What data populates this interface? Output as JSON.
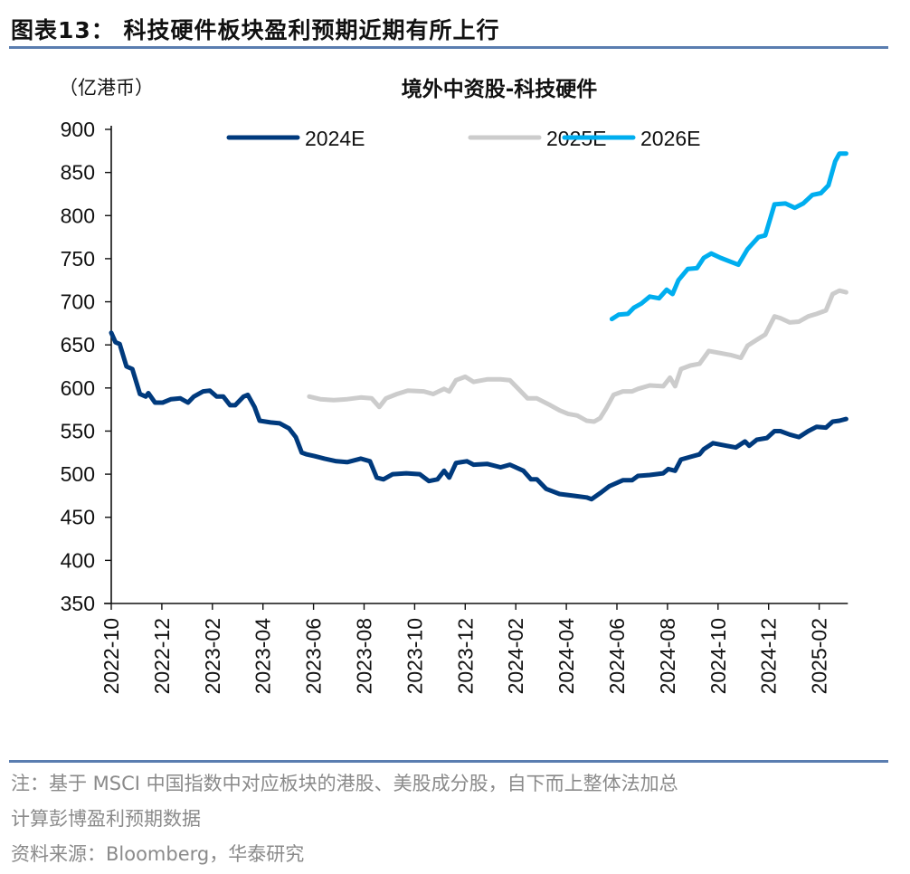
{
  "figure_title": "图表13： 科技硬件板块盈利预期近期有所上行",
  "notes": [
    "注：基于 MSCI 中国指数中对应板块的港股、美股成分股，自下而上整体法加总",
    "计算彭博盈利预期数据",
    "资料来源：Bloomberg，华泰研究"
  ],
  "chart_data": {
    "type": "line",
    "title": "境外中资股-科技硬件",
    "unit_label": "（亿港币）",
    "ylim": [
      350,
      900
    ],
    "yticks": [
      350,
      400,
      450,
      500,
      550,
      600,
      650,
      700,
      750,
      800,
      850,
      900
    ],
    "xlim": [
      "2022-10-01",
      "2025-03-05"
    ],
    "xticks": [
      "2022-10",
      "2022-12",
      "2023-02",
      "2023-04",
      "2023-06",
      "2023-08",
      "2023-10",
      "2023-12",
      "2024-02",
      "2024-04",
      "2024-06",
      "2024-08",
      "2024-10",
      "2024-12",
      "2025-02"
    ],
    "grid": false,
    "legend_position": "top",
    "series": [
      {
        "name": "2024E",
        "color": "#003a7d",
        "points": [
          [
            "2022-10-01",
            664
          ],
          [
            "2022-10-06",
            653
          ],
          [
            "2022-10-11",
            651
          ],
          [
            "2022-10-19",
            625
          ],
          [
            "2022-10-26",
            622
          ],
          [
            "2022-11-05",
            593
          ],
          [
            "2022-11-12",
            590
          ],
          [
            "2022-11-15",
            594
          ],
          [
            "2022-11-23",
            583
          ],
          [
            "2022-12-02",
            583
          ],
          [
            "2022-12-12",
            587
          ],
          [
            "2022-12-23",
            588
          ],
          [
            "2023-01-02",
            583
          ],
          [
            "2023-01-09",
            590
          ],
          [
            "2023-01-20",
            596
          ],
          [
            "2023-01-28",
            597
          ],
          [
            "2023-02-06",
            590
          ],
          [
            "2023-02-14",
            590
          ],
          [
            "2023-02-22",
            580
          ],
          [
            "2023-02-28",
            580
          ],
          [
            "2023-03-08",
            590
          ],
          [
            "2023-03-13",
            592
          ],
          [
            "2023-03-21",
            578
          ],
          [
            "2023-03-27",
            562
          ],
          [
            "2023-04-10",
            560
          ],
          [
            "2023-04-21",
            559
          ],
          [
            "2023-05-02",
            553
          ],
          [
            "2023-05-10",
            543
          ],
          [
            "2023-05-17",
            525
          ],
          [
            "2023-05-23",
            523
          ],
          [
            "2023-06-02",
            521
          ],
          [
            "2023-06-14",
            518
          ],
          [
            "2023-06-28",
            515
          ],
          [
            "2023-07-11",
            514
          ],
          [
            "2023-07-27",
            518
          ],
          [
            "2023-08-08",
            515
          ],
          [
            "2023-08-16",
            496
          ],
          [
            "2023-08-24",
            494
          ],
          [
            "2023-09-05",
            500
          ],
          [
            "2023-09-21",
            501
          ],
          [
            "2023-10-07",
            500
          ],
          [
            "2023-10-18",
            492
          ],
          [
            "2023-10-28",
            494
          ],
          [
            "2023-11-06",
            504
          ],
          [
            "2023-11-12",
            496
          ],
          [
            "2023-11-20",
            513
          ],
          [
            "2023-12-03",
            515
          ],
          [
            "2023-12-11",
            511
          ],
          [
            "2023-12-27",
            512
          ],
          [
            "2024-01-13",
            508
          ],
          [
            "2024-01-24",
            511
          ],
          [
            "2024-02-10",
            504
          ],
          [
            "2024-02-19",
            494
          ],
          [
            "2024-02-26",
            494
          ],
          [
            "2024-03-07",
            483
          ],
          [
            "2024-03-23",
            477
          ],
          [
            "2024-04-09",
            475
          ],
          [
            "2024-04-25",
            473
          ],
          [
            "2024-05-01",
            471
          ],
          [
            "2024-05-11",
            478
          ],
          [
            "2024-05-22",
            486
          ],
          [
            "2024-06-08",
            493
          ],
          [
            "2024-06-19",
            493
          ],
          [
            "2024-06-26",
            498
          ],
          [
            "2024-07-10",
            499
          ],
          [
            "2024-07-26",
            501
          ],
          [
            "2024-08-02",
            506
          ],
          [
            "2024-08-10",
            504
          ],
          [
            "2024-08-17",
            517
          ],
          [
            "2024-08-28",
            520
          ],
          [
            "2024-09-09",
            523
          ],
          [
            "2024-09-14",
            529
          ],
          [
            "2024-09-25",
            536
          ],
          [
            "2024-10-11",
            533
          ],
          [
            "2024-10-22",
            531
          ],
          [
            "2024-11-03",
            538
          ],
          [
            "2024-11-08",
            533
          ],
          [
            "2024-11-17",
            540
          ],
          [
            "2024-11-29",
            542
          ],
          [
            "2024-12-08",
            550
          ],
          [
            "2024-12-15",
            550
          ],
          [
            "2024-12-26",
            546
          ],
          [
            "2025-01-07",
            543
          ],
          [
            "2025-01-18",
            550
          ],
          [
            "2025-01-28",
            555
          ],
          [
            "2025-02-09",
            554
          ],
          [
            "2025-02-17",
            561
          ],
          [
            "2025-02-25",
            562
          ],
          [
            "2025-03-03",
            564
          ]
        ]
      },
      {
        "name": "2025E",
        "color": "#cccccc",
        "points": [
          [
            "2023-05-26",
            590
          ],
          [
            "2023-06-09",
            587
          ],
          [
            "2023-06-25",
            586
          ],
          [
            "2023-07-11",
            587
          ],
          [
            "2023-07-27",
            589
          ],
          [
            "2023-08-10",
            588
          ],
          [
            "2023-08-19",
            578
          ],
          [
            "2023-08-27",
            588
          ],
          [
            "2023-09-10",
            593
          ],
          [
            "2023-09-23",
            597
          ],
          [
            "2023-10-12",
            596
          ],
          [
            "2023-10-23",
            593
          ],
          [
            "2023-11-06",
            599
          ],
          [
            "2023-11-12",
            596
          ],
          [
            "2023-11-20",
            609
          ],
          [
            "2023-12-01",
            613
          ],
          [
            "2023-12-11",
            607
          ],
          [
            "2023-12-27",
            610
          ],
          [
            "2024-01-13",
            610
          ],
          [
            "2024-01-24",
            609
          ],
          [
            "2024-02-04",
            599
          ],
          [
            "2024-02-15",
            588
          ],
          [
            "2024-02-26",
            588
          ],
          [
            "2024-03-12",
            580
          ],
          [
            "2024-03-23",
            574
          ],
          [
            "2024-04-03",
            570
          ],
          [
            "2024-04-14",
            568
          ],
          [
            "2024-04-25",
            562
          ],
          [
            "2024-05-04",
            561
          ],
          [
            "2024-05-11",
            565
          ],
          [
            "2024-05-18",
            576
          ],
          [
            "2024-05-27",
            592
          ],
          [
            "2024-06-08",
            596
          ],
          [
            "2024-06-19",
            596
          ],
          [
            "2024-06-26",
            599
          ],
          [
            "2024-07-10",
            603
          ],
          [
            "2024-07-26",
            602
          ],
          [
            "2024-08-04",
            612
          ],
          [
            "2024-08-10",
            602
          ],
          [
            "2024-08-17",
            622
          ],
          [
            "2024-08-28",
            626
          ],
          [
            "2024-09-09",
            628
          ],
          [
            "2024-09-20",
            643
          ],
          [
            "2024-10-01",
            641
          ],
          [
            "2024-10-17",
            638
          ],
          [
            "2024-10-28",
            635
          ],
          [
            "2024-11-06",
            649
          ],
          [
            "2024-11-17",
            656
          ],
          [
            "2024-11-27",
            662
          ],
          [
            "2024-12-08",
            683
          ],
          [
            "2024-12-15",
            681
          ],
          [
            "2024-12-26",
            676
          ],
          [
            "2025-01-07",
            677
          ],
          [
            "2025-01-18",
            683
          ],
          [
            "2025-01-28",
            686
          ],
          [
            "2025-02-09",
            690
          ],
          [
            "2025-02-17",
            709
          ],
          [
            "2025-02-25",
            713
          ],
          [
            "2025-03-03",
            711
          ]
        ]
      },
      {
        "name": "2026E",
        "color": "#00aeef",
        "points": [
          [
            "2024-05-25",
            680
          ],
          [
            "2024-06-03",
            685
          ],
          [
            "2024-06-14",
            686
          ],
          [
            "2024-06-21",
            693
          ],
          [
            "2024-06-30",
            698
          ],
          [
            "2024-07-10",
            706
          ],
          [
            "2024-07-21",
            704
          ],
          [
            "2024-07-30",
            714
          ],
          [
            "2024-08-07",
            709
          ],
          [
            "2024-08-14",
            725
          ],
          [
            "2024-08-25",
            738
          ],
          [
            "2024-09-06",
            739
          ],
          [
            "2024-09-14",
            751
          ],
          [
            "2024-09-23",
            756
          ],
          [
            "2024-10-04",
            751
          ],
          [
            "2024-10-17",
            746
          ],
          [
            "2024-10-25",
            743
          ],
          [
            "2024-11-06",
            761
          ],
          [
            "2024-11-19",
            775
          ],
          [
            "2024-11-27",
            777
          ],
          [
            "2024-12-08",
            813
          ],
          [
            "2024-12-21",
            814
          ],
          [
            "2025-01-02",
            809
          ],
          [
            "2025-01-12",
            814
          ],
          [
            "2025-01-23",
            824
          ],
          [
            "2025-02-03",
            826
          ],
          [
            "2025-02-12",
            835
          ],
          [
            "2025-02-20",
            863
          ],
          [
            "2025-02-25",
            872
          ],
          [
            "2025-03-03",
            872
          ]
        ]
      }
    ]
  }
}
